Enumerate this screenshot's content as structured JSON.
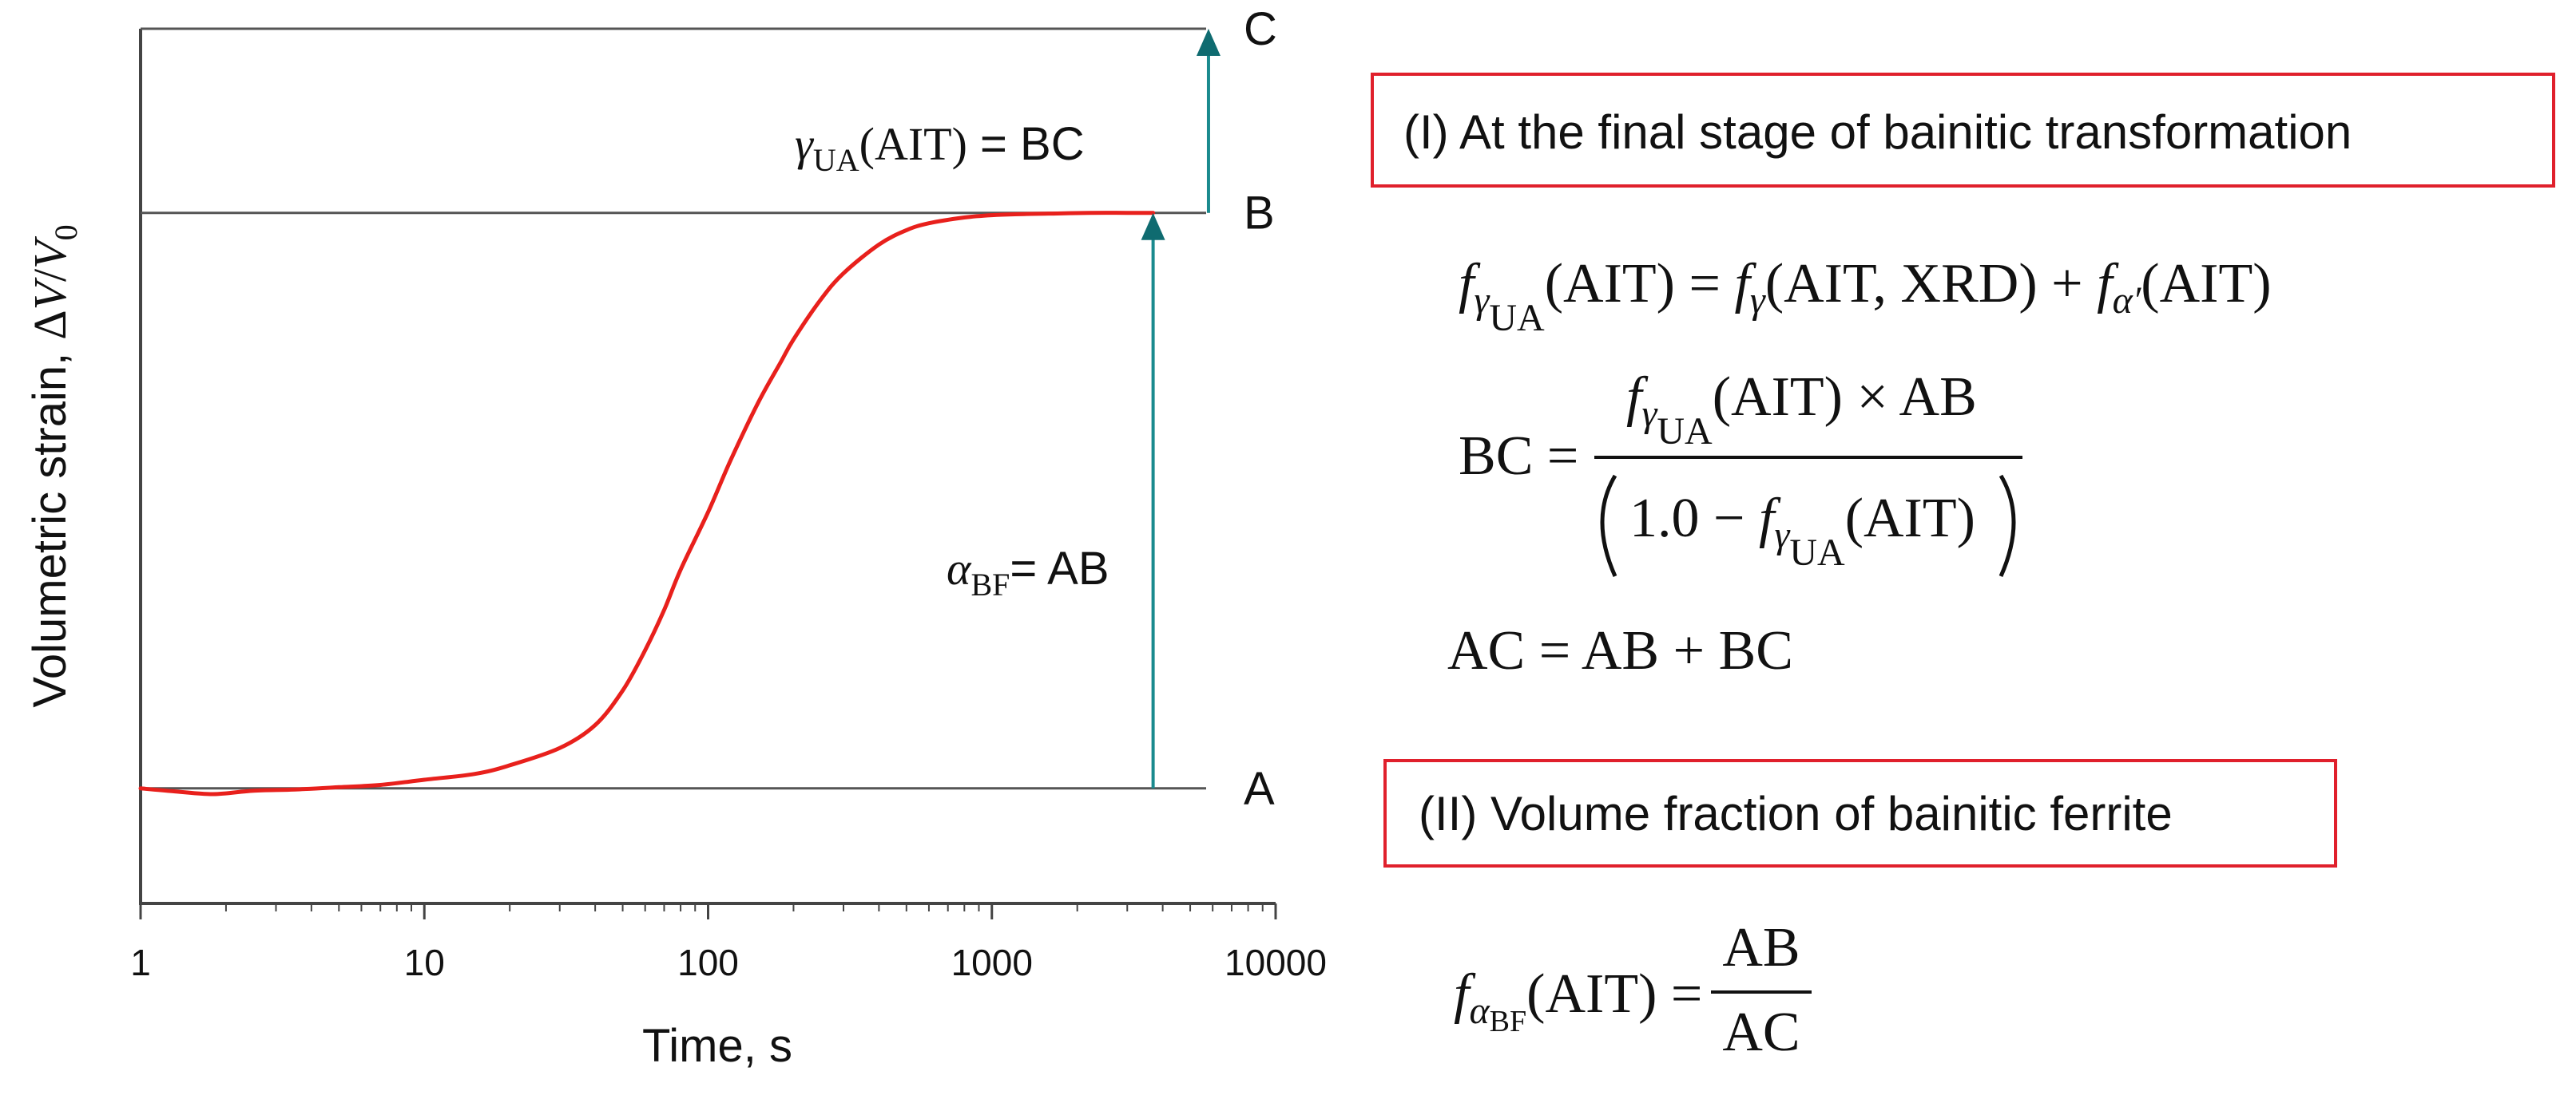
{
  "chart_data": {
    "type": "line",
    "x_scale": "log",
    "xlabel": "Time, s",
    "ylabel_prefix": "Volumetric strain, ",
    "ylabel_math": {
      "delta": "Δ",
      "v": "V",
      "slash": "/",
      "v0": "V",
      "v0_sub": "0"
    },
    "xlim": [
      1,
      10000
    ],
    "ylim": [
      -0.2,
      1.32
    ],
    "x_ticks": [
      1,
      10,
      100,
      1000,
      10000
    ],
    "x_tick_labels": [
      "1",
      "10",
      "100",
      "1000",
      "10000"
    ],
    "y_ticks_shown": false,
    "grid": false,
    "legend": "none",
    "series": [
      {
        "name": "Volumetric strain",
        "color": "#e8201c",
        "x": [
          1,
          1.3,
          1.8,
          2.5,
          3.5,
          5,
          7,
          10,
          15,
          20,
          30,
          40,
          50,
          60,
          70,
          80,
          100,
          120,
          150,
          180,
          200,
          250,
          300,
          400,
          500,
          600,
          800,
          1000,
          1300,
          1700,
          2200,
          3000,
          3700
        ],
        "values": [
          0,
          -0.005,
          -0.01,
          -0.004,
          -0.002,
          0.002,
          0.006,
          0.015,
          0.025,
          0.04,
          0.07,
          0.11,
          0.17,
          0.24,
          0.31,
          0.38,
          0.48,
          0.57,
          0.67,
          0.74,
          0.78,
          0.85,
          0.895,
          0.945,
          0.97,
          0.982,
          0.992,
          0.996,
          0.998,
          0.999,
          1,
          1,
          1
        ]
      }
    ],
    "levels": [
      {
        "name": "A",
        "label": "A",
        "value": 0
      },
      {
        "name": "B",
        "label": "B",
        "value": 1
      },
      {
        "name": "C",
        "label": "C",
        "value": 1.32
      }
    ],
    "arrows": [
      {
        "name": "alpha-bf-arrow",
        "x": 3700,
        "from": 0,
        "to": 1,
        "color": "#1a8a8e"
      },
      {
        "name": "gamma-ua-arrow",
        "x": 5800,
        "from": 1,
        "to": 1.32,
        "color": "#1a8a8e"
      }
    ],
    "annotations": {
      "gamma": {
        "sym": "γ",
        "sub": "UA",
        "arg": "(AIT)",
        "rest": " = BC"
      },
      "alpha": {
        "sym": "α",
        "sub": "BF",
        "rest": "= AB"
      }
    }
  },
  "panel": {
    "section1_title": "(I) At the final stage of bainitic transformation",
    "section2_title": "(II)  Volume fraction of bainitic ferrite",
    "eq1": {
      "f": "f",
      "gamma": "γ",
      "ua": "UA",
      "ait": "(AIT)",
      "eq": " = ",
      "gamma_xrd": "(AIT, XRD)",
      "plus": " + ",
      "alpha_prime": "α′"
    },
    "eq2": {
      "lhs": "BC = ",
      "num_tail": "(AIT) × AB",
      "den_head": "1.0 − ",
      "den_tail": "(AIT)"
    },
    "eq3": "AC = AB + BC",
    "eq4": {
      "ait": "(AIT) = ",
      "alpha": "α",
      "bf": "BF",
      "num": "AB",
      "den": "AC"
    }
  }
}
